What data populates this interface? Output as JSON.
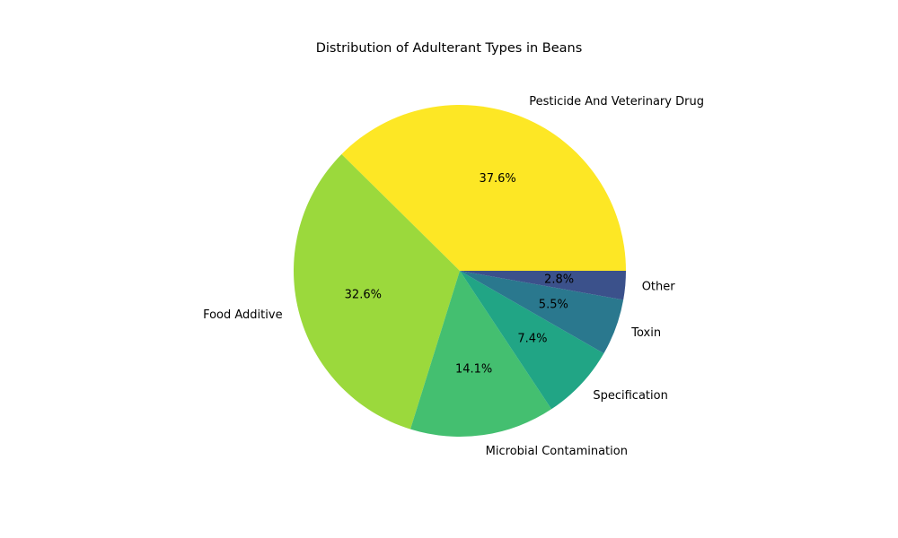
{
  "chart_data": {
    "type": "pie",
    "title": "Distribution of Adulterant Types in Beans",
    "slices": [
      {
        "label": "Pesticide And Veterinary Drug",
        "value": 37.6,
        "pct_label": "37.6%",
        "color": "#fde725"
      },
      {
        "label": "Food Additive",
        "value": 32.6,
        "pct_label": "32.6%",
        "color": "#9bd93c"
      },
      {
        "label": "Microbial Contamination",
        "value": 14.1,
        "pct_label": "14.1%",
        "color": "#44bf70"
      },
      {
        "label": "Specification",
        "value": 7.4,
        "pct_label": "7.4%",
        "color": "#21a585"
      },
      {
        "label": "Toxin",
        "value": 5.5,
        "pct_label": "5.5%",
        "color": "#2a788e"
      },
      {
        "label": "Other",
        "value": 2.8,
        "pct_label": "2.8%",
        "color": "#3b518b"
      }
    ],
    "start_angle": "3 o'clock, counter-clockwise"
  }
}
